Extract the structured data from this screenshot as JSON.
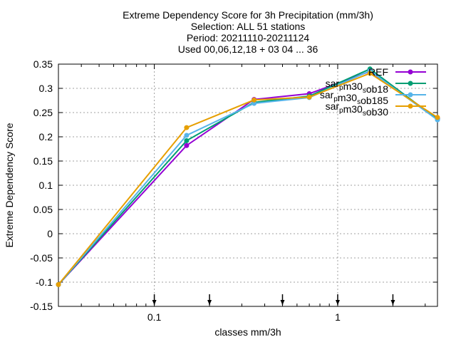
{
  "chart_data": {
    "type": "line",
    "title_lines": [
      "Extreme Dependency Score  for 3h Precipitation (mm/3h)",
      "Selection: ALL      51 stations",
      "Period: 20211110-20211124",
      "Used 00,06,12,18 + 03 04 ... 36"
    ],
    "xlabel": "classes mm/3h",
    "ylabel": "Extreme Dependency Score",
    "xscale": "log",
    "xlim": [
      0.03,
      3.5
    ],
    "ylim": [
      -0.15,
      0.35
    ],
    "xticks": [
      {
        "value": 0.1,
        "label": "0.1"
      },
      {
        "value": 1,
        "label": "1"
      }
    ],
    "yticks": [
      {
        "value": 0.35,
        "label": "0.35"
      },
      {
        "value": 0.3,
        "label": "0.3"
      },
      {
        "value": 0.25,
        "label": "0.25"
      },
      {
        "value": 0.2,
        "label": "0.2"
      },
      {
        "value": 0.15,
        "label": "0.15"
      },
      {
        "value": 0.1,
        "label": "0.1"
      },
      {
        "value": 0.05,
        "label": "0.05"
      },
      {
        "value": 0,
        "label": "0"
      },
      {
        "value": -0.05,
        "label": "-0.05"
      },
      {
        "value": -0.1,
        "label": "-0.1"
      },
      {
        "value": -0.15,
        "label": "-0.15"
      }
    ],
    "grid": true,
    "legend_position": "top-right",
    "class_markers_x": [
      0.1,
      0.2,
      0.5,
      1,
      2
    ],
    "series": [
      {
        "name": "REF",
        "legend_parts": [
          [
            "REF",
            false
          ]
        ],
        "color": "#9400d3",
        "x": [
          0.03,
          0.15,
          0.35,
          0.7,
          1.5,
          3.5
        ],
        "y": [
          -0.105,
          0.182,
          0.277,
          0.289,
          0.335,
          0.238
        ]
      },
      {
        "name": "sar_m30_sob18",
        "legend_parts": [
          [
            "sar",
            false
          ],
          [
            "p",
            true
          ],
          [
            "m30",
            false
          ],
          [
            "s",
            true
          ],
          [
            "ob18",
            false
          ]
        ],
        "color": "#009e73",
        "x": [
          0.03,
          0.15,
          0.35,
          0.7,
          1.5,
          3.5
        ],
        "y": [
          -0.105,
          0.192,
          0.271,
          0.284,
          0.34,
          0.236
        ]
      },
      {
        "name": "sar_m30_sob185",
        "legend_parts": [
          [
            "sar",
            false
          ],
          [
            "p",
            true
          ],
          [
            "m30",
            false
          ],
          [
            "s",
            true
          ],
          [
            "ob185",
            false
          ]
        ],
        "color": "#56b4e9",
        "x": [
          0.03,
          0.15,
          0.35,
          0.7,
          1.5,
          3.5
        ],
        "y": [
          -0.105,
          0.203,
          0.269,
          0.281,
          0.336,
          0.235
        ]
      },
      {
        "name": "sar_m30_sob30",
        "legend_parts": [
          [
            "sar",
            false
          ],
          [
            "p",
            true
          ],
          [
            "m30",
            false
          ],
          [
            "s",
            true
          ],
          [
            "ob30",
            false
          ]
        ],
        "color": "#e69f00",
        "x": [
          0.03,
          0.15,
          0.35,
          0.7,
          1.5,
          3.5
        ],
        "y": [
          -0.105,
          0.219,
          0.276,
          0.282,
          0.331,
          0.24
        ]
      }
    ]
  }
}
